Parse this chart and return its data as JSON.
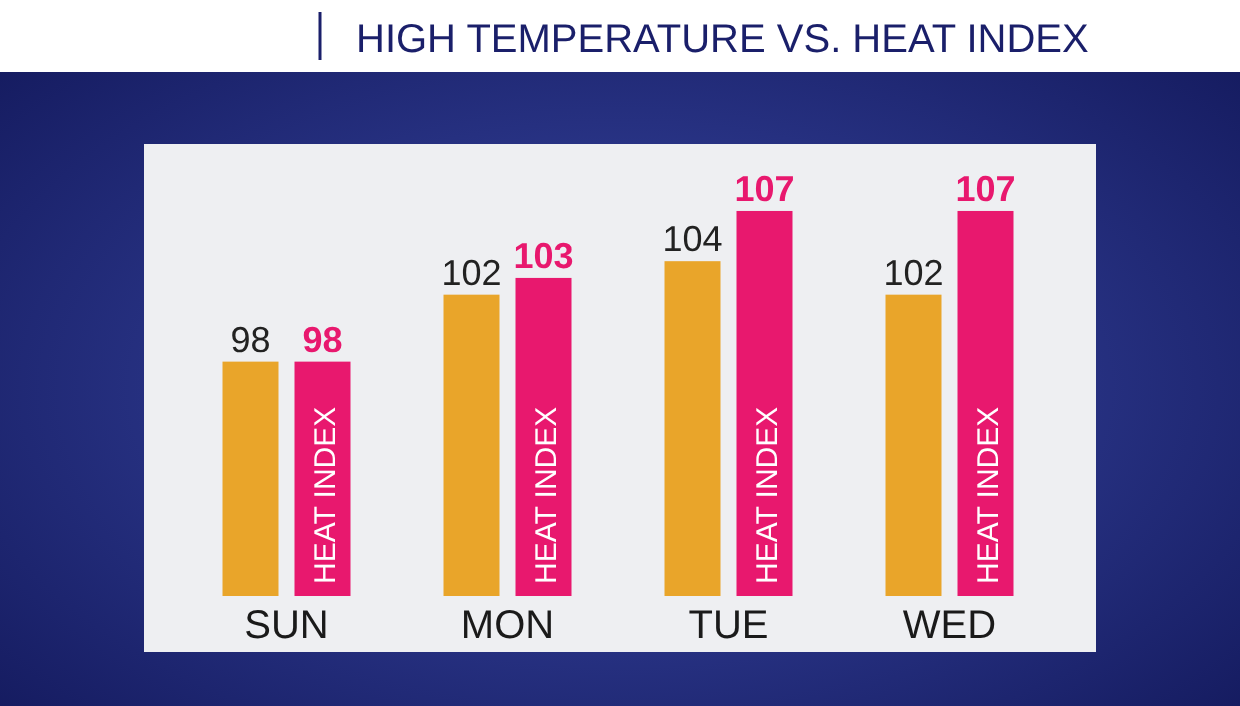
{
  "chart_data": {
    "type": "bar",
    "title": "HIGH TEMPERATURE VS. HEAT INDEX",
    "categories": [
      "SUN",
      "MON",
      "TUE",
      "WED"
    ],
    "series": [
      {
        "color": "#e9a52a",
        "values": [
          98,
          102,
          104,
          102
        ]
      },
      {
        "name": "HEAT INDEX",
        "color": "#e8186e",
        "values": [
          98,
          103,
          107,
          107
        ]
      }
    ],
    "ylim": [
      84,
      111
    ],
    "tick_labels": "x",
    "data_labels": true,
    "legend": false,
    "grid": false
  }
}
